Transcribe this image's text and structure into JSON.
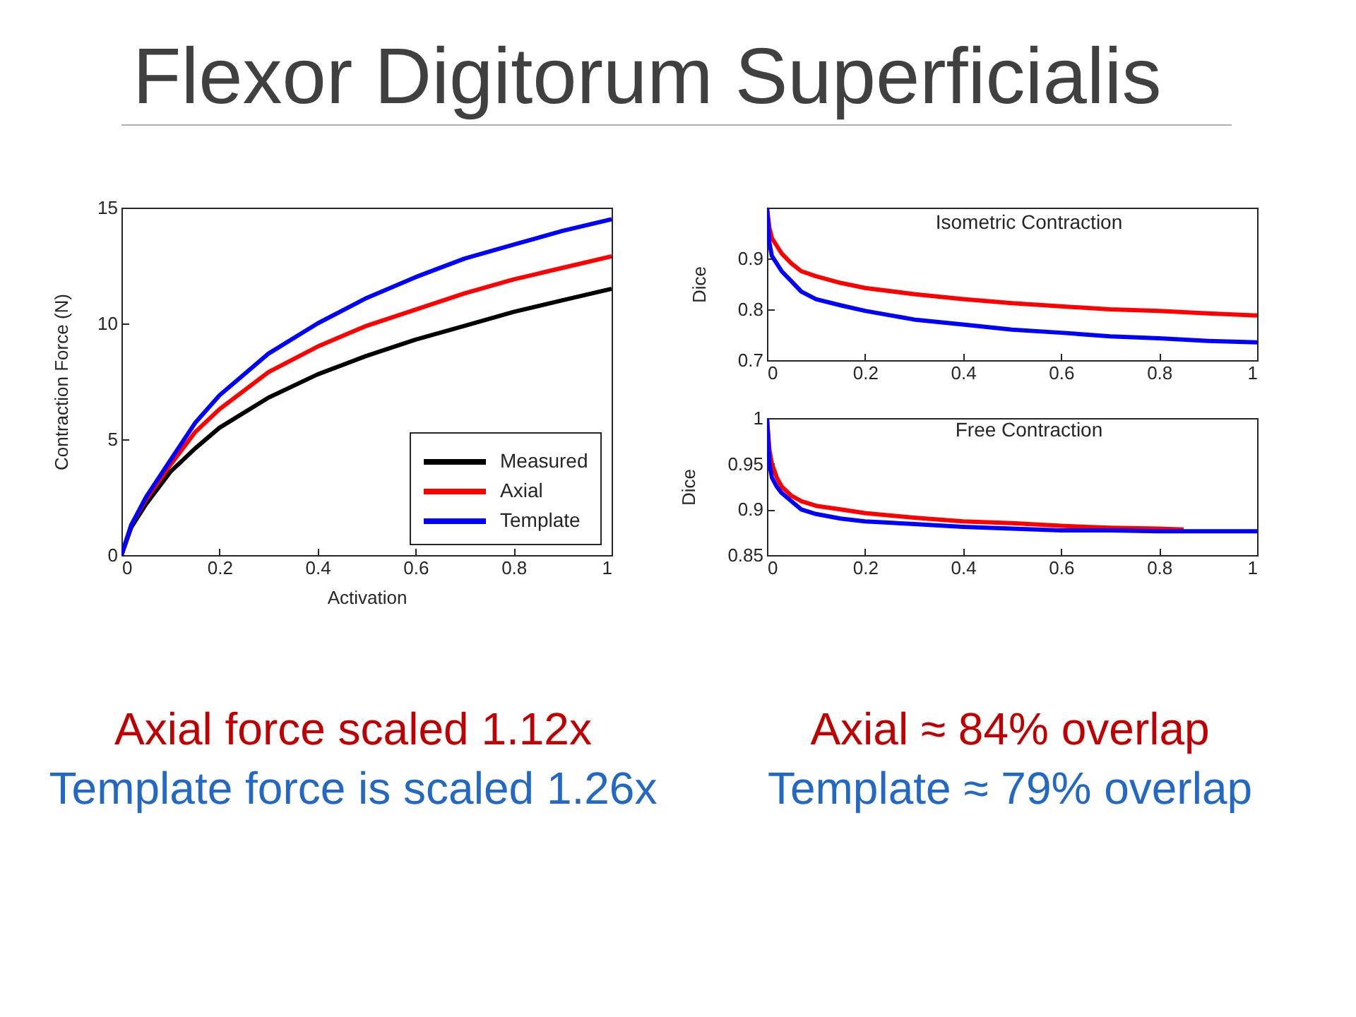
{
  "chart_data": [
    {
      "type": "line",
      "title": "Flexor Digitorum Superficialis",
      "xlabel": "Activation",
      "ylabel": "Contraction Force (N)",
      "x": [
        0,
        0.02,
        0.05,
        0.1,
        0.15,
        0.2,
        0.3,
        0.4,
        0.5,
        0.6,
        0.7,
        0.8,
        0.9,
        1
      ],
      "series": [
        {
          "name": "Measured",
          "color": "#000000",
          "values": [
            0,
            1.2,
            2.2,
            3.6,
            4.6,
            5.5,
            6.8,
            7.8,
            8.6,
            9.3,
            9.9,
            10.5,
            11.0,
            11.5
          ]
        },
        {
          "name": "Axial",
          "color": "#ff0000",
          "values": [
            0,
            1.3,
            2.4,
            3.9,
            5.3,
            6.3,
            7.9,
            9.0,
            9.9,
            10.6,
            11.3,
            11.9,
            12.4,
            12.9
          ]
        },
        {
          "name": "Template",
          "color": "#0000ff",
          "values": [
            0,
            1.3,
            2.5,
            4.1,
            5.7,
            6.9,
            8.7,
            10.0,
            11.1,
            12.0,
            12.8,
            13.4,
            14.0,
            14.5
          ]
        }
      ],
      "xlim": [
        0,
        1
      ],
      "ylim": [
        0,
        15
      ],
      "xticks": [
        0,
        0.2,
        0.4,
        0.6,
        0.8,
        1
      ],
      "yticks": [
        0,
        5,
        10,
        15
      ],
      "legend": "bottom right",
      "annotations": [
        "Axial force scaled 1.12x",
        "Template force is scaled 1.26x"
      ]
    },
    {
      "type": "line",
      "title": "Isometric Contraction",
      "ylabel": "Dice",
      "x": [
        0,
        0.005,
        0.01,
        0.02,
        0.03,
        0.05,
        0.07,
        0.1,
        0.15,
        0.2,
        0.3,
        0.4,
        0.5,
        0.6,
        0.7,
        0.8,
        0.9,
        1
      ],
      "series": [
        {
          "color": "#ff0000",
          "values": [
            1.0,
            0.96,
            0.94,
            0.925,
            0.91,
            0.89,
            0.875,
            0.865,
            0.852,
            0.842,
            0.83,
            0.82,
            0.812,
            0.806,
            0.8,
            0.797,
            0.792,
            0.788
          ]
        },
        {
          "color": "#0000ff",
          "values": [
            1.0,
            0.93,
            0.905,
            0.89,
            0.875,
            0.855,
            0.835,
            0.82,
            0.808,
            0.797,
            0.78,
            0.77,
            0.76,
            0.754,
            0.747,
            0.743,
            0.738,
            0.735
          ]
        }
      ],
      "xlim": [
        0,
        1
      ],
      "ylim": [
        0.7,
        1
      ],
      "xticks": [
        0,
        0.2,
        0.4,
        0.6,
        0.8,
        1
      ],
      "yticks": [
        0.7,
        0.8,
        0.9
      ]
    },
    {
      "type": "line",
      "title": "Free Contraction",
      "ylabel": "Dice",
      "x": [
        0,
        0.005,
        0.01,
        0.02,
        0.03,
        0.05,
        0.07,
        0.1,
        0.15,
        0.2,
        0.3,
        0.4,
        0.5,
        0.6,
        0.7,
        0.8,
        0.85,
        0.9,
        1
      ],
      "series": [
        {
          "color": "#ff0000",
          "values": [
            1.0,
            0.965,
            0.95,
            0.935,
            0.925,
            0.915,
            0.909,
            0.904,
            0.9,
            0.896,
            0.891,
            0.887,
            0.885,
            0.882,
            0.88,
            0.879,
            0.878,
            null,
            null
          ]
        },
        {
          "color": "#0000ff",
          "values": [
            1.0,
            0.95,
            0.935,
            0.925,
            0.918,
            0.909,
            0.9,
            0.895,
            0.89,
            0.887,
            0.884,
            0.881,
            0.879,
            0.877,
            0.877,
            0.876,
            0.876,
            0.876,
            0.876
          ]
        }
      ],
      "xlim": [
        0,
        1
      ],
      "ylim": [
        0.85,
        1
      ],
      "xticks": [
        0,
        0.2,
        0.4,
        0.6,
        0.8,
        1
      ],
      "yticks": [
        0.85,
        0.9,
        0.95,
        1
      ],
      "annotations": [
        "Axial ≈ 84% overlap",
        "Template ≈ 79% overlap"
      ]
    }
  ]
}
